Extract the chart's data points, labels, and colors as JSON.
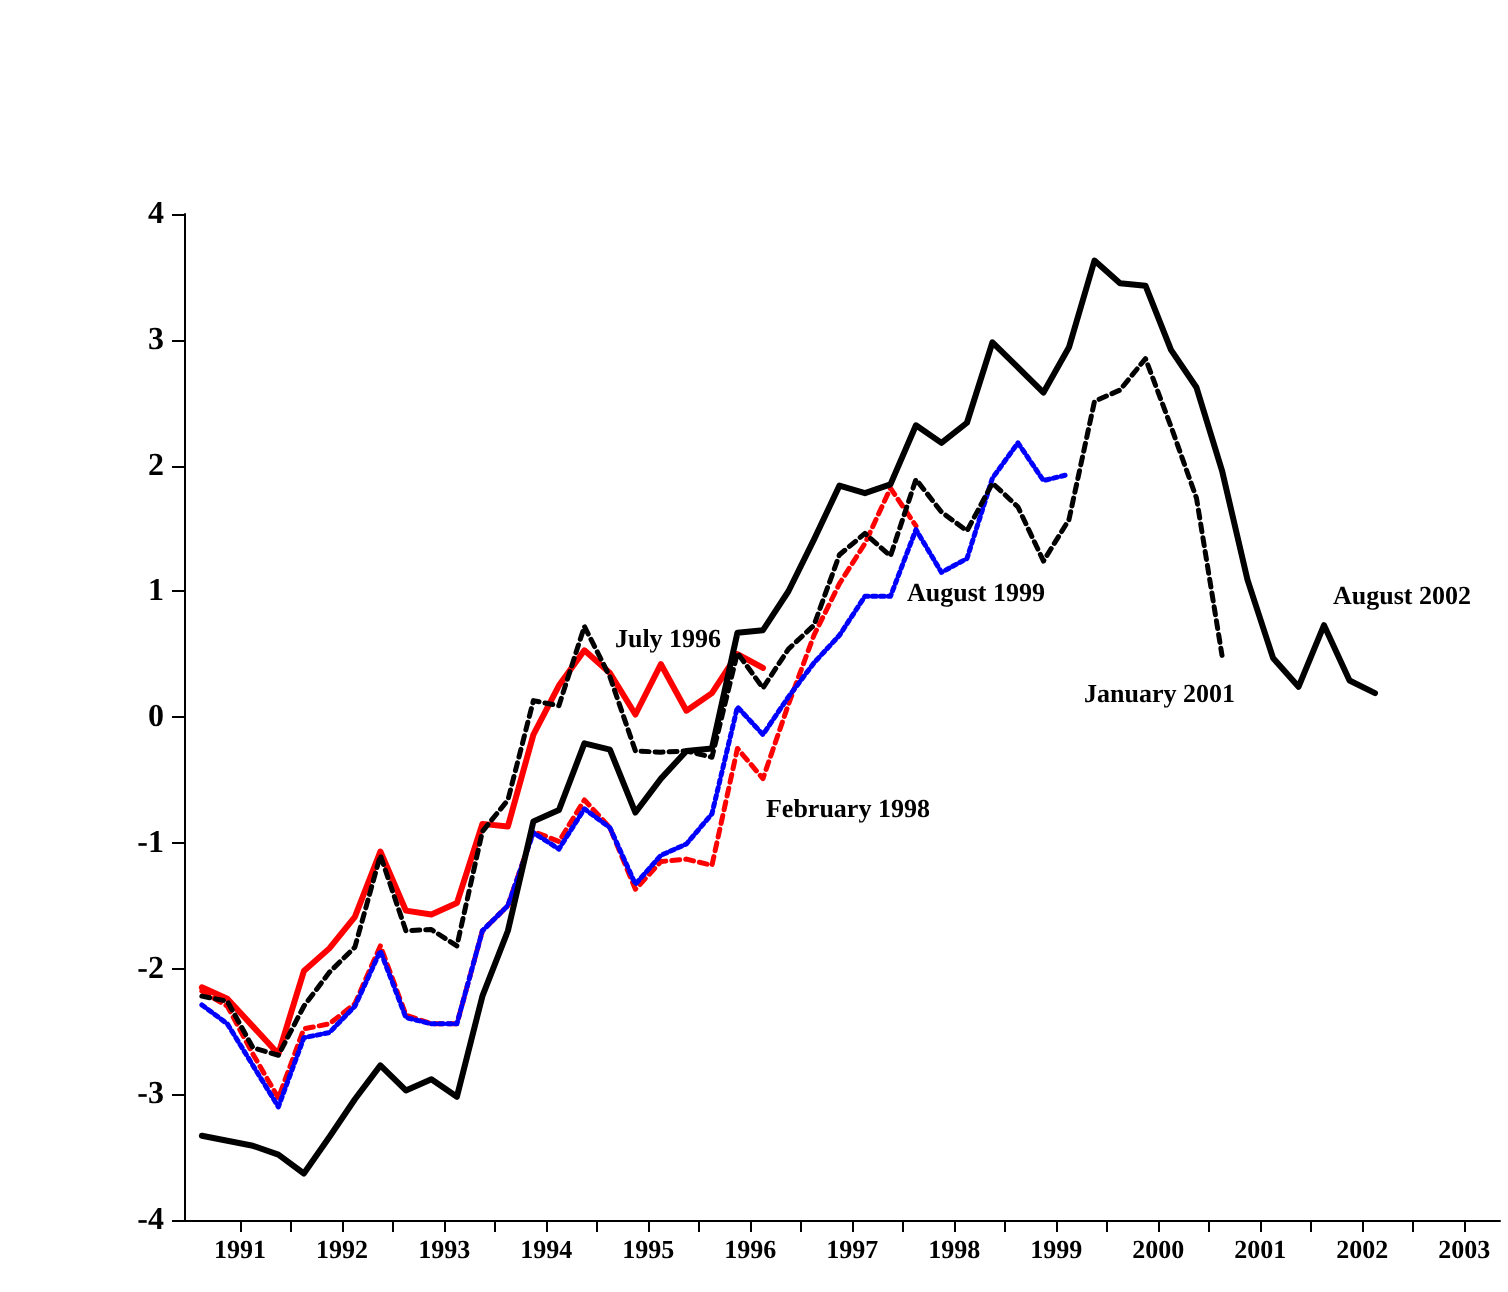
{
  "chart_data": {
    "type": "line",
    "x": [
      1990.625,
      1990.875,
      1991.125,
      1991.375,
      1991.625,
      1991.875,
      1992.125,
      1992.375,
      1992.625,
      1992.875,
      1993.125,
      1993.375,
      1993.625,
      1993.875,
      1994.125,
      1994.375,
      1994.625,
      1994.875,
      1995.125,
      1995.375,
      1995.625,
      1995.875,
      1996.125,
      1996.375,
      1996.625,
      1996.875,
      1997.125,
      1997.375,
      1997.625,
      1997.875,
      1998.125,
      1998.375,
      1998.625,
      1998.875,
      1999.125,
      1999.375,
      1999.625,
      1999.875,
      2000.125,
      2000.375,
      2000.625,
      2000.875,
      2001.125,
      2001.375,
      2001.625,
      2001.875,
      2002.125
    ],
    "series": [
      {
        "name": "August 2002",
        "color": "#000000",
        "line_style": "solid",
        "values": [
          -3.33,
          -3.37,
          -3.41,
          -3.48,
          -3.63,
          -3.34,
          -3.04,
          -2.77,
          -2.97,
          -2.88,
          -3.02,
          -2.22,
          -1.7,
          -0.83,
          -0.74,
          -0.21,
          -0.26,
          -0.76,
          -0.49,
          -0.27,
          -0.25,
          0.67,
          0.69,
          1.0,
          1.41,
          1.84,
          1.78,
          1.85,
          2.32,
          2.18,
          2.34,
          2.98,
          2.78,
          2.58,
          2.94,
          3.63,
          3.45,
          3.43,
          2.92,
          2.62,
          1.96,
          1.09,
          0.47,
          0.24,
          0.73,
          0.29,
          0.19
        ]
      },
      {
        "name": "January 2001",
        "color": "#000000",
        "line_style": "dashed",
        "values": [
          -2.22,
          -2.26,
          -2.63,
          -2.69,
          -2.3,
          -2.03,
          -1.83,
          -1.1,
          -1.7,
          -1.69,
          -1.82,
          -0.91,
          -0.66,
          0.13,
          0.09,
          0.72,
          0.32,
          -0.27,
          -0.28,
          -0.27,
          -0.32,
          0.51,
          0.23,
          0.54,
          0.73,
          1.29,
          1.46,
          1.28,
          1.89,
          1.63,
          1.48,
          1.86,
          1.67,
          1.24,
          1.57,
          2.51,
          2.6,
          2.85,
          2.31,
          1.74,
          0.49,
          null,
          null,
          null,
          null,
          null,
          null
        ]
      },
      {
        "name": "August 1999",
        "color": "#0000ff",
        "line_style": "dotted",
        "values": [
          -2.29,
          -2.44,
          -2.77,
          -3.1,
          -2.55,
          -2.51,
          -2.3,
          -1.86,
          -2.39,
          -2.44,
          -2.44,
          -1.7,
          -1.5,
          -0.92,
          -1.05,
          -0.73,
          -0.88,
          -1.33,
          -1.1,
          -1.01,
          -0.77,
          0.08,
          -0.14,
          0.16,
          0.43,
          0.65,
          0.96,
          0.96,
          1.49,
          1.15,
          1.26,
          1.9,
          2.18,
          1.88,
          1.93,
          null,
          null,
          null,
          null,
          null,
          null,
          null,
          null,
          null,
          null,
          null,
          null
        ]
      },
      {
        "name": "July 1996",
        "color": "#ff0000",
        "line_style": "solid",
        "values": [
          -2.15,
          -2.24,
          -2.46,
          -2.68,
          -2.02,
          -1.84,
          -1.59,
          -1.07,
          -1.54,
          -1.57,
          -1.48,
          -0.85,
          -0.87,
          -0.14,
          0.25,
          0.53,
          0.35,
          0.02,
          0.42,
          0.05,
          0.19,
          0.5,
          0.39,
          null,
          null,
          null,
          null,
          null,
          null,
          null,
          null,
          null,
          null,
          null,
          null,
          null,
          null,
          null,
          null,
          null,
          null,
          null,
          null,
          null,
          null,
          null,
          null
        ]
      },
      {
        "name": "February 1998",
        "color": "#ff0000",
        "line_style": "dashed",
        "values": [
          -2.18,
          -2.3,
          -2.68,
          -3.03,
          -2.48,
          -2.44,
          -2.28,
          -1.82,
          -2.37,
          -2.44,
          -2.44,
          -1.7,
          -1.5,
          -0.91,
          -0.99,
          -0.66,
          -0.88,
          -1.37,
          -1.15,
          -1.13,
          -1.18,
          -0.25,
          -0.49,
          0.1,
          0.65,
          1.06,
          1.38,
          1.82,
          1.52,
          null,
          null,
          null,
          null,
          null,
          null,
          null,
          null,
          null,
          null,
          null,
          null,
          null,
          null,
          null,
          null,
          null,
          null
        ]
      }
    ],
    "xlim": [
      1990.45,
      2003.35
    ],
    "xticks": [
      1991,
      {
        "value": 1991.5,
        "label": null
      },
      1992,
      {
        "value": 1992.5,
        "label": null
      },
      1993,
      {
        "value": 1993.5,
        "label": null
      },
      1994,
      {
        "value": 1994.5,
        "label": null
      },
      1995,
      {
        "value": 1995.5,
        "label": null
      },
      1996,
      {
        "value": 1996.5,
        "label": null
      },
      1997,
      {
        "value": 1997.5,
        "label": null
      },
      1998,
      {
        "value": 1998.5,
        "label": null
      },
      1999,
      {
        "value": 1999.5,
        "label": null
      },
      2000,
      {
        "value": 2000.5,
        "label": null
      },
      2001,
      {
        "value": 2001.5,
        "label": null
      },
      2002,
      {
        "value": 2002.5,
        "label": null
      },
      2003
    ],
    "ylim": [
      -4,
      4
    ],
    "yticks": [
      -4,
      -3,
      -2,
      -1,
      0,
      1,
      2,
      3,
      4
    ],
    "grid": false,
    "legend": false,
    "marker": "none"
  }
}
